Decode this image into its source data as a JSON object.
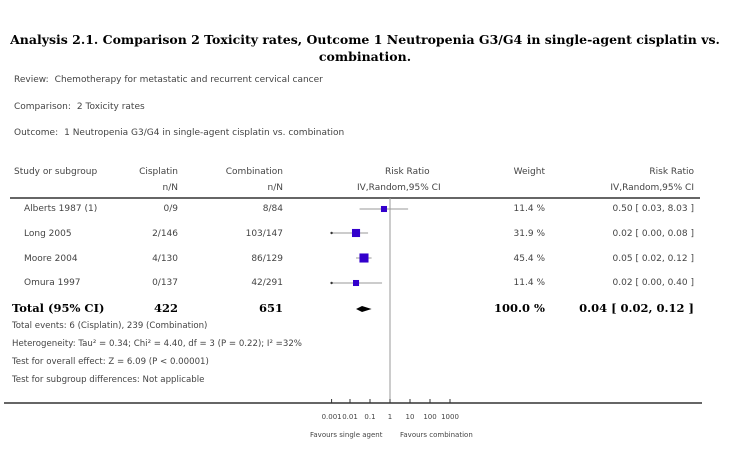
{
  "title": "Analysis 2.1.   Comparison 2 Toxicity rates, Outcome 1 Neutropenia G3/G4 in single-agent cisplatin vs. combination.",
  "meta": {
    "review_label": "Review:",
    "review": "Chemotherapy for metastatic and recurrent cervical cancer",
    "comparison_label": "Comparison:",
    "comparison": "2 Toxicity rates",
    "outcome_label": "Outcome:",
    "outcome": "1 Neutropenia G3/G4 in single-agent cisplatin vs. combination"
  },
  "headers": {
    "study": "Study or subgroup",
    "cisplatin": "Cisplatin",
    "cisplatin_sub": "n/N",
    "combination": "Combination",
    "combination_sub": "n/N",
    "plot": "Risk Ratio",
    "plot_sub": "IV,Random,95% CI",
    "weight": "Weight",
    "rr": "Risk Ratio",
    "rr_sub": "IV,Random,95% CI"
  },
  "footer": {
    "events": "Total events: 6 (Cisplatin), 239 (Combination)",
    "heterogeneity": "Heterogeneity: Tau² = 0.34; Chi² = 4.40, df = 3 (P = 0.22); I² =32%",
    "overall": "Test for overall effect: Z = 6.09 (P < 0.00001)",
    "subgroup": "Test for subgroup differences: Not applicable"
  },
  "chart_data": {
    "type": "forest",
    "scale": "log",
    "xlim": [
      0.001,
      1000
    ],
    "ticks": [
      "0.001",
      "0.01",
      "0.1",
      "1",
      "10",
      "100",
      "1000"
    ],
    "tick_values": [
      0.001,
      0.01,
      0.1,
      1,
      10,
      100,
      1000
    ],
    "favours_left": "Favours single agent",
    "favours_right": "Favours combination",
    "studies": [
      {
        "name": "Alberts 1987 (1)",
        "cisplatin": "0/9",
        "combination": "8/84",
        "weight": "11.4 %",
        "rr_text": "0.50 [ 0.03, 8.03 ]",
        "rr": 0.5,
        "low": 0.03,
        "high": 8.03,
        "w": 11.4
      },
      {
        "name": "Long 2005",
        "cisplatin": "2/146",
        "combination": "103/147",
        "weight": "31.9 %",
        "rr_text": "0.02 [ 0.00, 0.08 ]",
        "rr": 0.02,
        "low": 0.0,
        "high": 0.08,
        "w": 31.9
      },
      {
        "name": "Moore 2004",
        "cisplatin": "4/130",
        "combination": "86/129",
        "weight": "45.4 %",
        "rr_text": "0.05 [ 0.02, 0.12 ]",
        "rr": 0.05,
        "low": 0.02,
        "high": 0.12,
        "w": 45.4
      },
      {
        "name": "Omura 1997",
        "cisplatin": "0/137",
        "combination": "42/291",
        "weight": "11.4 %",
        "rr_text": "0.02 [ 0.00, 0.40 ]",
        "rr": 0.02,
        "low": 0.0,
        "high": 0.4,
        "w": 11.4
      }
    ],
    "total": {
      "name": "Total (95% CI)",
      "cisplatin": "422",
      "combination": "651",
      "weight": "100.0 %",
      "rr_text": "0.04 [ 0.02, 0.12 ]",
      "rr": 0.04,
      "low": 0.02,
      "high": 0.12
    },
    "colors": {
      "marker": "#3300cc",
      "diamond": "#000000",
      "line": "#999999"
    }
  }
}
